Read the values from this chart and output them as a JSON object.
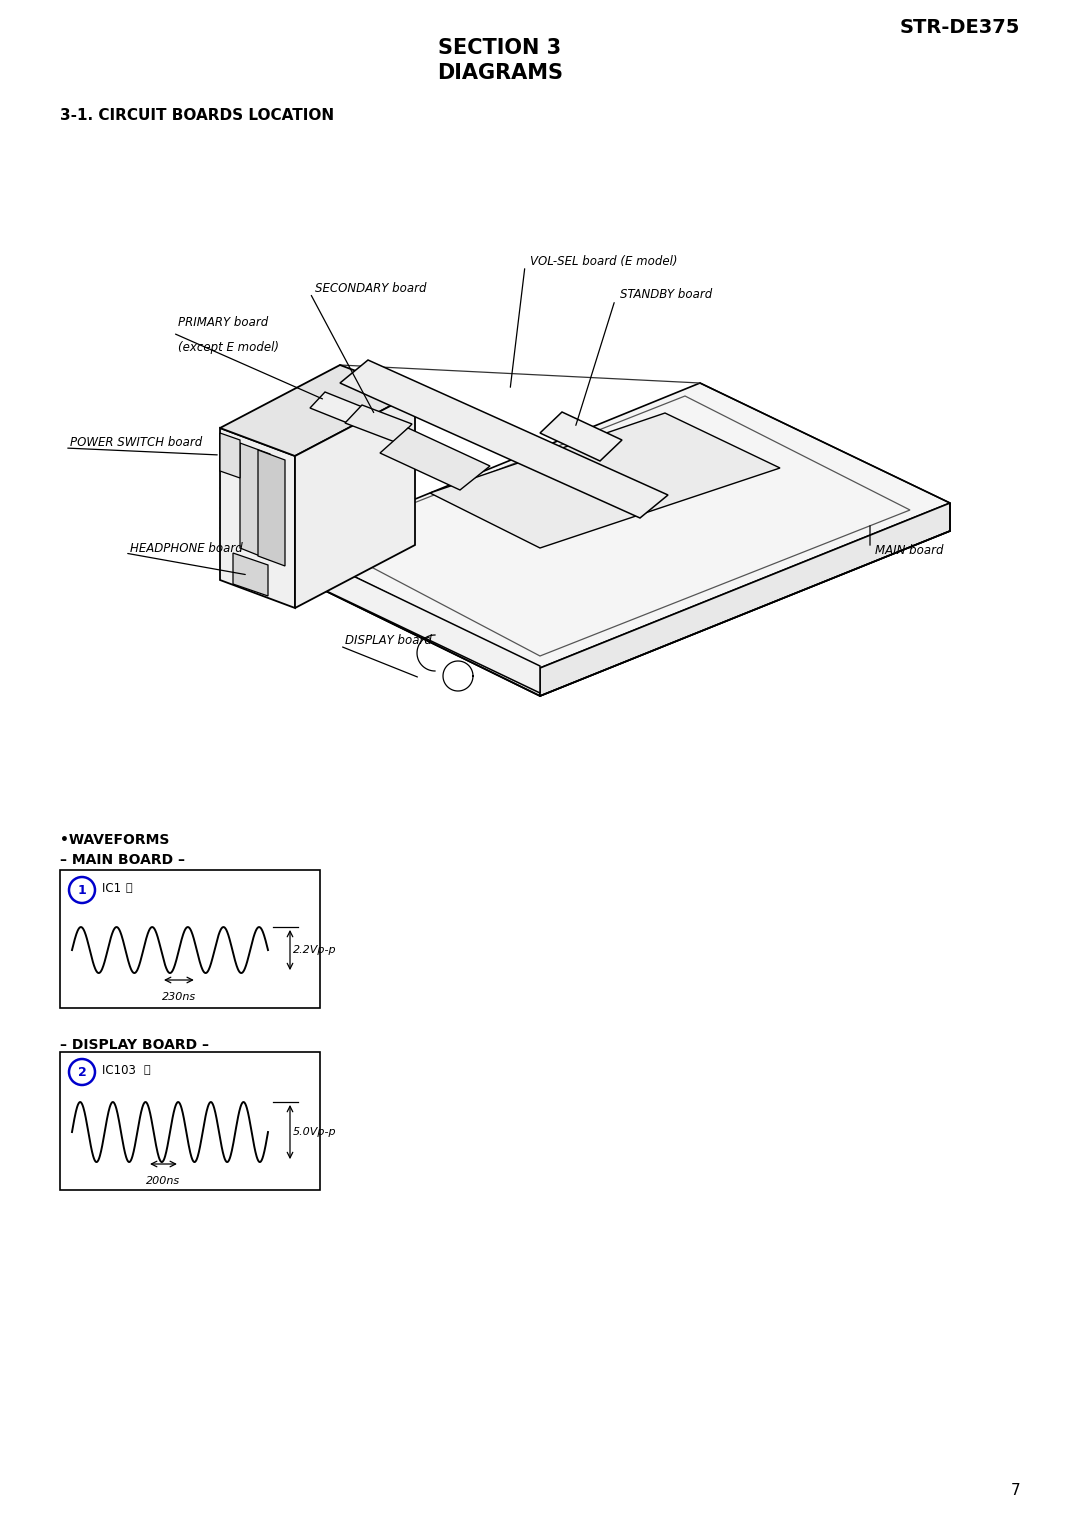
{
  "page_title": "STR-DE375",
  "section_title": "SECTION 3\nDIAGRAMS",
  "subsection_title": "3-1. CIRCUIT BOARDS LOCATION",
  "page_number": "7",
  "bg_color": "#ffffff",
  "text_color": "#000000",
  "blue_color": "#0000cc",
  "waveforms_header": "•WAVEFORMS",
  "main_board_header": "– MAIN BOARD –",
  "display_board_header": "– DISPLAY BOARD –",
  "wf1_num": "1",
  "wf1_label": "IC1 ⓜ",
  "wf1_time": "230ns",
  "wf1_volt": "2.2Vp-p",
  "wf2_num": "2",
  "wf2_label": "IC103 ⓛ",
  "wf2_time": "200ns",
  "wf2_volt": "5.0Vp-p"
}
